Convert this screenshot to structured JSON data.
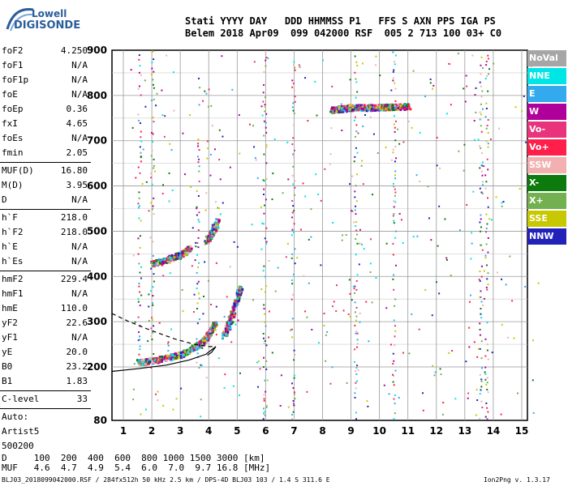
{
  "logo": {
    "line1": "Lowell",
    "line2": "DIGISONDE"
  },
  "header": {
    "labels": "Stati YYYY DAY   DDD HHMMSS P1   FFS S AXN PPS IGA PS",
    "values": "Belem 2018 Apr09  099 042000 RSF  005 2 713 100 03+ C0"
  },
  "params": [
    {
      "name": "foF2",
      "value": "4.250"
    },
    {
      "name": "foF1",
      "value": "N/A"
    },
    {
      "name": "foF1p",
      "value": "N/A"
    },
    {
      "name": "foE",
      "value": "N/A"
    },
    {
      "name": "foEp",
      "value": "0.36"
    },
    {
      "name": "fxI",
      "value": "4.65"
    },
    {
      "name": "foEs",
      "value": "N/A"
    },
    {
      "name": "fmin",
      "value": "2.05"
    },
    {
      "name": "MUF(D)",
      "value": "16.80",
      "sep": true
    },
    {
      "name": "M(D)",
      "value": "3.95"
    },
    {
      "name": "D",
      "value": "N/A"
    },
    {
      "name": "h`F",
      "value": "218.0",
      "sep": true
    },
    {
      "name": "h`F2",
      "value": "218.0"
    },
    {
      "name": "h`E",
      "value": "N/A"
    },
    {
      "name": "h`Es",
      "value": "N/A"
    },
    {
      "name": "hmF2",
      "value": "229.4",
      "sep": true
    },
    {
      "name": "hmF1",
      "value": "N/A"
    },
    {
      "name": "hmE",
      "value": "110.0"
    },
    {
      "name": "yF2",
      "value": "22.6"
    },
    {
      "name": "yF1",
      "value": "N/A"
    },
    {
      "name": "yE",
      "value": "20.0"
    },
    {
      "name": "B0",
      "value": "23.2"
    },
    {
      "name": "B1",
      "value": "1.83"
    },
    {
      "name": "C-level",
      "value": "33",
      "sep": true
    }
  ],
  "auto": {
    "line1": "Auto:",
    "line2": "Artist5",
    "line3": "500200"
  },
  "bottom_table": {
    "row1": "D     100  200  400  600  800 1000 1500 3000 [km]",
    "row2": "MUF   4.6  4.7  4.9  5.4  6.0  7.0  9.7 16.8 [MHz]"
  },
  "footer": {
    "left": "BLJ03_2018099042000.RSF / 284fx512h 50 kHz 2.5 km / DPS-4D BLJ03 103 / 1.4 S 311.6 E",
    "right": "Ion2Png v. 1.3.17"
  },
  "legend": [
    {
      "label": "NoVal",
      "color": "#a6a6a6"
    },
    {
      "label": "NNE",
      "color": "#00e5e5"
    },
    {
      "label": "E",
      "color": "#33aaee"
    },
    {
      "label": "W",
      "color": "#b0009b"
    },
    {
      "label": "Vo-",
      "color": "#e8347a"
    },
    {
      "label": "Vo+",
      "color": "#ff1f4a"
    },
    {
      "label": "SSW",
      "color": "#f2b0b0"
    },
    {
      "label": "X-",
      "color": "#0c7a0c"
    },
    {
      "label": "X+",
      "color": "#73b050"
    },
    {
      "label": "SSE",
      "color": "#c8c800"
    },
    {
      "label": "NNW",
      "color": "#2222bb"
    }
  ],
  "chart_data": {
    "type": "scatter",
    "title": "",
    "xlabel": "",
    "ylabel": "",
    "xlim": [
      0.6,
      15.2
    ],
    "ylim": [
      80,
      900
    ],
    "x_ticks": [
      1,
      2,
      3,
      4,
      5,
      6,
      7,
      8,
      9,
      10,
      11,
      12,
      13,
      14,
      15
    ],
    "y_ticks": [
      80,
      200,
      300,
      400,
      500,
      600,
      700,
      800,
      900
    ],
    "y_tick_labels": [
      "80",
      "200",
      "300",
      "400",
      "500",
      "600",
      "700",
      "800",
      "900"
    ],
    "grid": true,
    "traces": [
      {
        "name": "F2 trace",
        "x": [
          1.5,
          2.0,
          2.5,
          3.0,
          3.5,
          3.8,
          4.0,
          4.2
        ],
        "y": [
          212,
          216,
          222,
          230,
          245,
          260,
          275,
          300
        ]
      },
      {
        "name": "F2 upper",
        "x": [
          4.5,
          4.7,
          4.9,
          5.1
        ],
        "y": [
          270,
          300,
          340,
          380
        ]
      },
      {
        "name": "2F echo",
        "x": [
          2.0,
          2.5,
          3.0,
          3.3
        ],
        "y": [
          430,
          438,
          450,
          466
        ]
      },
      {
        "name": "2F echo high",
        "x": [
          3.9,
          4.1,
          4.3
        ],
        "y": [
          480,
          500,
          525
        ]
      },
      {
        "name": "spread 800",
        "x": [
          8.3,
          8.6,
          9.0,
          9.6,
          10.0,
          10.3,
          10.6,
          11.0
        ],
        "y": [
          770,
          772,
          775,
          775,
          776,
          776,
          777,
          777
        ]
      }
    ],
    "verticals": [
      {
        "x": 1.55,
        "ymin": 210,
        "ymax": 900
      },
      {
        "x": 2.0,
        "ymin": 200,
        "ymax": 900
      },
      {
        "x": 3.6,
        "ymin": 200,
        "ymax": 700
      },
      {
        "x": 5.95,
        "ymin": 85,
        "ymax": 900
      },
      {
        "x": 6.95,
        "ymin": 85,
        "ymax": 900
      },
      {
        "x": 9.15,
        "ymin": 85,
        "ymax": 900
      },
      {
        "x": 10.5,
        "ymin": 85,
        "ymax": 900
      },
      {
        "x": 13.55,
        "ymin": 85,
        "ymax": 900
      },
      {
        "x": 13.75,
        "ymin": 85,
        "ymax": 900
      }
    ],
    "profile_solid": {
      "x": [
        0.6,
        1.5,
        2.5,
        3.3,
        3.9,
        4.25,
        4.1,
        3.95
      ],
      "y": [
        190,
        196,
        204,
        215,
        228,
        245,
        232,
        226
      ]
    },
    "profile_dashed": {
      "x": [
        0.6,
        1.2,
        2.0,
        2.8,
        3.5,
        4.0,
        4.25
      ],
      "y": [
        318,
        300,
        280,
        262,
        250,
        245,
        245
      ]
    }
  }
}
